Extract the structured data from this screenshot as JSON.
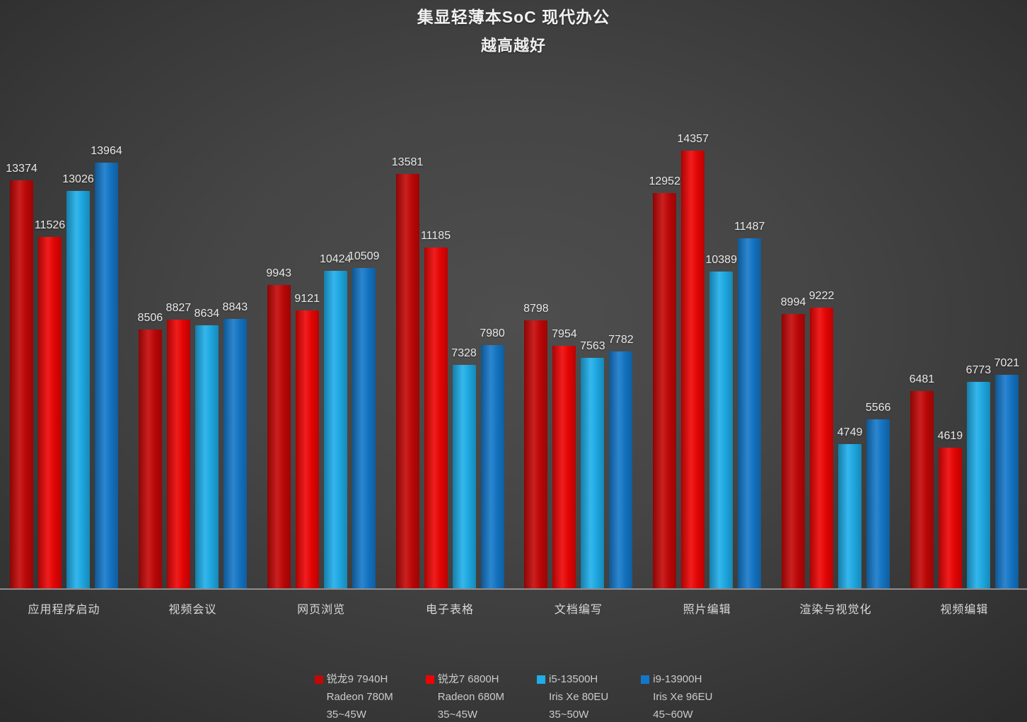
{
  "title": "集显轻薄本SoC 现代办公",
  "subtitle": "越高越好",
  "chart_data": {
    "type": "bar",
    "title": "集显轻薄本SoC 现代办公",
    "subtitle": "越高越好",
    "categories": [
      "应用程序启动",
      "视频会议",
      "网页浏览",
      "电子表格",
      "文档编写",
      "照片编辑",
      "渲染与视觉化",
      "视频编辑"
    ],
    "series": [
      {
        "name": "锐龙9 7940H",
        "gpu": "Radeon 780M",
        "power": "35~45W",
        "color": "#c40707",
        "values": [
          13374,
          8506,
          9943,
          13581,
          8798,
          12952,
          8994,
          6481
        ]
      },
      {
        "name": "锐龙7 6800H",
        "gpu": "Radeon 680M",
        "power": "35~45W",
        "color": "#ee0404",
        "values": [
          11526,
          8827,
          9121,
          11185,
          7954,
          14357,
          9222,
          4619
        ]
      },
      {
        "name": "i5-13500H",
        "gpu": "Iris Xe 80EU",
        "power": "35~50W",
        "color": "#1eaeea",
        "values": [
          13026,
          8634,
          10424,
          7328,
          7563,
          10389,
          4749,
          6773
        ]
      },
      {
        "name": "i9-13900H",
        "gpu": "Iris Xe 96EU",
        "power": "45~60W",
        "color": "#1478ca",
        "values": [
          13964,
          8843,
          10509,
          7980,
          7782,
          11487,
          5566,
          7021
        ]
      }
    ],
    "ylim": [
      0,
      15000
    ],
    "xlabel": "",
    "ylabel": "",
    "grid": false,
    "value_labels": true,
    "legend_position": "bottom",
    "axis_line_color": "#8f8f8f",
    "value_label_color": "#e9e9e9",
    "category_label_color": "#d9d9d9",
    "background_center": "#4e4e4e",
    "background_edge": "#2b2b2b"
  }
}
